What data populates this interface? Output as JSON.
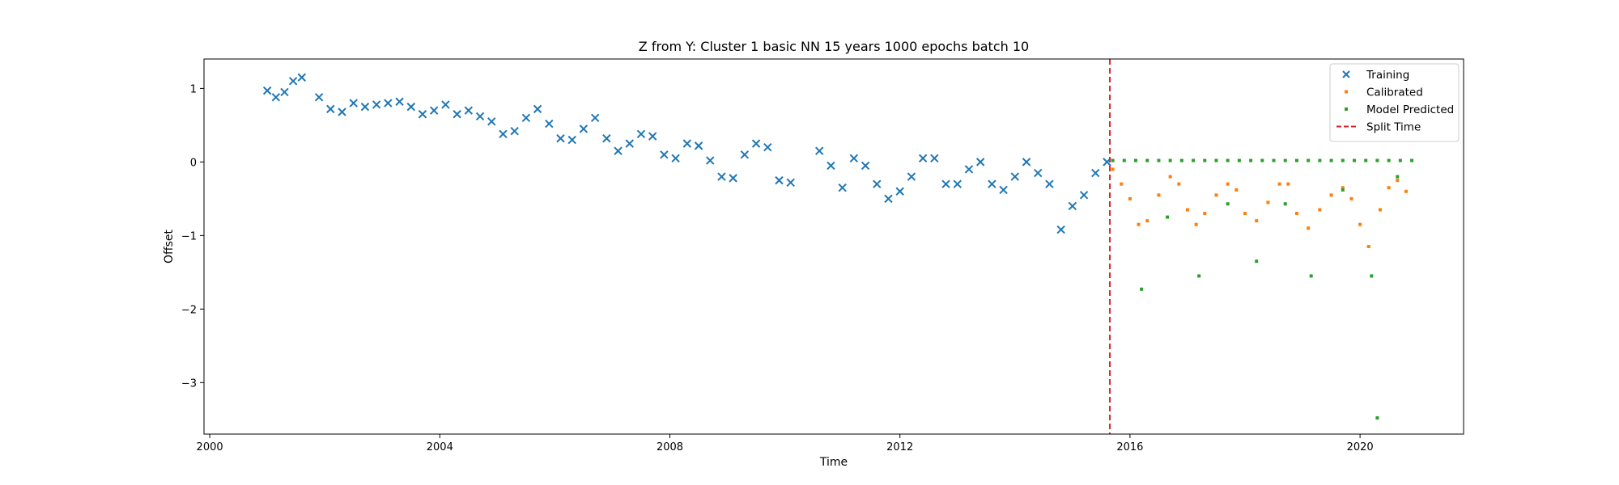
{
  "chart_data": {
    "type": "scatter",
    "title": "Z from Y: Cluster 1 basic NN 15 years 1000 epochs batch 10",
    "xlabel": "Time",
    "ylabel": "Offset",
    "xlim": [
      1999.9,
      2021.8
    ],
    "ylim": [
      -3.7,
      1.4
    ],
    "xticks": [
      2000,
      2004,
      2008,
      2012,
      2016,
      2020
    ],
    "yticks": [
      1,
      0,
      -1,
      -2,
      -3
    ],
    "ytick_labels": [
      "1",
      "0",
      "−1",
      "−2",
      "−3"
    ],
    "grid": false,
    "legend_position": "top-right",
    "split_time": 2015.65,
    "series": [
      {
        "name": "Training",
        "marker": "x",
        "color": "#1f77b4",
        "x": [
          2001.0,
          2001.15,
          2001.3,
          2001.45,
          2001.6,
          2001.9,
          2002.1,
          2002.3,
          2002.5,
          2002.7,
          2002.9,
          2003.1,
          2003.3,
          2003.5,
          2003.7,
          2003.9,
          2004.1,
          2004.3,
          2004.5,
          2004.7,
          2004.9,
          2005.1,
          2005.3,
          2005.5,
          2005.7,
          2005.9,
          2006.1,
          2006.3,
          2006.5,
          2006.7,
          2006.9,
          2007.1,
          2007.3,
          2007.5,
          2007.7,
          2007.9,
          2008.1,
          2008.3,
          2008.5,
          2008.7,
          2008.9,
          2009.1,
          2009.3,
          2009.5,
          2009.7,
          2009.9,
          2010.1,
          2010.6,
          2010.8,
          2011.0,
          2011.2,
          2011.4,
          2011.6,
          2011.8,
          2012.0,
          2012.2,
          2012.4,
          2012.6,
          2012.8,
          2013.0,
          2013.2,
          2013.4,
          2013.6,
          2013.8,
          2014.0,
          2014.2,
          2014.4,
          2014.6,
          2014.8,
          2015.0,
          2015.2,
          2015.4,
          2015.6
        ],
        "y": [
          0.97,
          0.88,
          0.95,
          1.1,
          1.15,
          0.88,
          0.72,
          0.68,
          0.8,
          0.75,
          0.78,
          0.8,
          0.82,
          0.75,
          0.65,
          0.7,
          0.78,
          0.65,
          0.7,
          0.62,
          0.55,
          0.38,
          0.42,
          0.6,
          0.72,
          0.52,
          0.32,
          0.3,
          0.45,
          0.6,
          0.32,
          0.15,
          0.25,
          0.38,
          0.35,
          0.1,
          0.05,
          0.25,
          0.22,
          0.02,
          -0.2,
          -0.22,
          0.1,
          0.25,
          0.2,
          -0.25,
          -0.28,
          0.15,
          -0.05,
          -0.35,
          0.05,
          -0.05,
          -0.3,
          -0.5,
          -0.4,
          -0.2,
          0.05,
          0.05,
          -0.3,
          -0.3,
          -0.1,
          0.0,
          -0.3,
          -0.38,
          -0.2,
          0.0,
          -0.15,
          -0.3,
          -0.92,
          -0.6,
          -0.45,
          -0.15,
          0.0
        ]
      },
      {
        "name": "Calibrated",
        "marker": "dot",
        "color": "#ff7f0e",
        "x": [
          2015.7,
          2015.85,
          2016.0,
          2016.15,
          2016.3,
          2016.5,
          2016.7,
          2016.85,
          2017.0,
          2017.15,
          2017.3,
          2017.5,
          2017.7,
          2017.85,
          2018.0,
          2018.2,
          2018.4,
          2018.6,
          2018.75,
          2018.9,
          2019.1,
          2019.3,
          2019.5,
          2019.7,
          2019.85,
          2020.0,
          2020.15,
          2020.35,
          2020.5,
          2020.65,
          2020.8
        ],
        "y": [
          -0.1,
          -0.3,
          -0.5,
          -0.85,
          -0.8,
          -0.45,
          -0.2,
          -0.3,
          -0.65,
          -0.85,
          -0.7,
          -0.45,
          -0.3,
          -0.38,
          -0.7,
          -0.8,
          -0.55,
          -0.3,
          -0.3,
          -0.7,
          -0.9,
          -0.65,
          -0.45,
          -0.35,
          -0.5,
          -0.85,
          -1.15,
          -0.65,
          -0.35,
          -0.25,
          -0.4
        ]
      },
      {
        "name": "Model Predicted",
        "marker": "dot",
        "color": "#2ca02c",
        "x": [
          2015.7,
          2015.9,
          2016.1,
          2016.3,
          2016.5,
          2016.7,
          2016.9,
          2017.1,
          2017.3,
          2017.5,
          2017.7,
          2017.9,
          2018.1,
          2018.3,
          2018.5,
          2018.7,
          2018.9,
          2019.1,
          2019.3,
          2019.5,
          2019.7,
          2019.9,
          2020.1,
          2020.3,
          2020.5,
          2020.7,
          2020.9,
          2016.2,
          2016.65,
          2017.2,
          2017.7,
          2018.2,
          2018.7,
          2019.15,
          2019.7,
          2020.2,
          2020.3,
          2020.65
        ],
        "y": [
          0.02,
          0.02,
          0.02,
          0.02,
          0.02,
          0.02,
          0.02,
          0.02,
          0.02,
          0.02,
          0.02,
          0.02,
          0.02,
          0.02,
          0.02,
          0.02,
          0.02,
          0.02,
          0.02,
          0.02,
          0.02,
          0.02,
          0.02,
          0.02,
          0.02,
          0.02,
          0.02,
          -1.73,
          -0.75,
          -1.55,
          -0.57,
          -1.35,
          -0.57,
          -1.55,
          -0.38,
          -1.55,
          -3.48,
          -0.2
        ]
      }
    ],
    "legend": [
      {
        "label": "Training",
        "marker": "x",
        "color": "#1f77b4"
      },
      {
        "label": "Calibrated",
        "marker": "dot",
        "color": "#ff7f0e"
      },
      {
        "label": "Model Predicted",
        "marker": "dot",
        "color": "#2ca02c"
      },
      {
        "label": "Split Time",
        "marker": "dashed-line",
        "color": "#d62728"
      }
    ]
  }
}
